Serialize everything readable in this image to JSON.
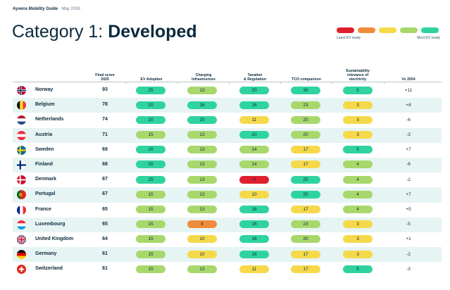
{
  "header": {
    "brand": "Ayvens Mobility Guide",
    "separator": "·",
    "date": "May 2026"
  },
  "title": {
    "prefix": "Category 1: ",
    "name": "Developed"
  },
  "legend": {
    "colors": [
      "#e01f2e",
      "#ef8c3a",
      "#f5d94a",
      "#a8d86b",
      "#2fd3a0"
    ],
    "least_label": "Least EV ready",
    "most_label": "Most EV ready"
  },
  "columns": {
    "final_score": [
      "Final score",
      "2025"
    ],
    "ev_adoption": [
      "EV Adoption"
    ],
    "charging": [
      "Charging",
      "Infrastructure"
    ],
    "taxation": [
      "Taxation",
      "& Regulation"
    ],
    "tco": [
      "TCO comparison"
    ],
    "sustainability": [
      "Sustainability",
      "relevance of",
      "electricity"
    ],
    "vs2024": [
      "Vs 2024"
    ]
  },
  "palette": {
    "teal": "#2fd3a0",
    "green": "#a8d86b",
    "yellow": "#f5d94a",
    "orange": "#ef8c3a",
    "red": "#e01f2e"
  },
  "rows": [
    {
      "country": "Norway",
      "flag": "norway-flag-icon",
      "score": "93",
      "ev": {
        "v": "25",
        "c": "teal"
      },
      "charging": {
        "v": "13",
        "c": "green"
      },
      "tax": {
        "v": "20",
        "c": "teal"
      },
      "tco": {
        "v": "30",
        "c": "teal"
      },
      "sus": {
        "v": "5",
        "c": "teal"
      },
      "vs": "+11"
    },
    {
      "country": "Belgium",
      "flag": "belgium-flag-icon",
      "score": "78",
      "ev": {
        "v": "20",
        "c": "teal"
      },
      "charging": {
        "v": "16",
        "c": "teal"
      },
      "tax": {
        "v": "16",
        "c": "teal"
      },
      "tco": {
        "v": "23",
        "c": "green"
      },
      "sus": {
        "v": "3",
        "c": "yellow"
      },
      "vs": "+8"
    },
    {
      "country": "Netherlands",
      "flag": "netherlands-flag-icon",
      "score": "74",
      "ev": {
        "v": "20",
        "c": "teal"
      },
      "charging": {
        "v": "20",
        "c": "teal"
      },
      "tax": {
        "v": "11",
        "c": "yellow"
      },
      "tco": {
        "v": "20",
        "c": "green"
      },
      "sus": {
        "v": "3",
        "c": "yellow"
      },
      "vs": "-6"
    },
    {
      "country": "Austria",
      "flag": "austria-flag-icon",
      "score": "71",
      "ev": {
        "v": "15",
        "c": "green"
      },
      "charging": {
        "v": "13",
        "c": "green"
      },
      "tax": {
        "v": "20",
        "c": "teal"
      },
      "tco": {
        "v": "20",
        "c": "green"
      },
      "sus": {
        "v": "3",
        "c": "yellow"
      },
      "vs": "-3"
    },
    {
      "country": "Sweden",
      "flag": "sweden-flag-icon",
      "score": "69",
      "ev": {
        "v": "20",
        "c": "teal"
      },
      "charging": {
        "v": "13",
        "c": "green"
      },
      "tax": {
        "v": "14",
        "c": "green"
      },
      "tco": {
        "v": "17",
        "c": "yellow"
      },
      "sus": {
        "v": "5",
        "c": "teal"
      },
      "vs": "+7"
    },
    {
      "country": "Finland",
      "flag": "finland-flag-icon",
      "score": "68",
      "ev": {
        "v": "20",
        "c": "teal"
      },
      "charging": {
        "v": "13",
        "c": "green"
      },
      "tax": {
        "v": "14",
        "c": "green"
      },
      "tco": {
        "v": "17",
        "c": "yellow"
      },
      "sus": {
        "v": "4",
        "c": "green"
      },
      "vs": "-6"
    },
    {
      "country": "Denmark",
      "flag": "denmark-flag-icon",
      "score": "67",
      "ev": {
        "v": "25",
        "c": "teal"
      },
      "charging": {
        "v": "13",
        "c": "green"
      },
      "tax": {
        "v": "0",
        "c": "red"
      },
      "tco": {
        "v": "25",
        "c": "teal"
      },
      "sus": {
        "v": "4",
        "c": "green"
      },
      "vs": "-2"
    },
    {
      "country": "Portugal",
      "flag": "portugal-flag-icon",
      "score": "67",
      "ev": {
        "v": "15",
        "c": "green"
      },
      "charging": {
        "v": "13",
        "c": "green"
      },
      "tax": {
        "v": "10",
        "c": "yellow"
      },
      "tco": {
        "v": "25",
        "c": "teal"
      },
      "sus": {
        "v": "4",
        "c": "green"
      },
      "vs": "+7"
    },
    {
      "country": "France",
      "flag": "france-flag-icon",
      "score": "65",
      "ev": {
        "v": "15",
        "c": "green"
      },
      "charging": {
        "v": "13",
        "c": "green"
      },
      "tax": {
        "v": "16",
        "c": "teal"
      },
      "tco": {
        "v": "17",
        "c": "yellow"
      },
      "sus": {
        "v": "4",
        "c": "green"
      },
      "vs": "+5"
    },
    {
      "country": "Luxembourg",
      "flag": "luxembourg-flag-icon",
      "score": "65",
      "ev": {
        "v": "15",
        "c": "green"
      },
      "charging": {
        "v": "8",
        "c": "orange"
      },
      "tax": {
        "v": "16",
        "c": "teal"
      },
      "tco": {
        "v": "23",
        "c": "green"
      },
      "sus": {
        "v": "3",
        "c": "yellow"
      },
      "vs": "-5"
    },
    {
      "country": "United Kingdom",
      "flag": "uk-flag-icon",
      "score": "64",
      "ev": {
        "v": "15",
        "c": "green"
      },
      "charging": {
        "v": "10",
        "c": "yellow"
      },
      "tax": {
        "v": "16",
        "c": "teal"
      },
      "tco": {
        "v": "20",
        "c": "green"
      },
      "sus": {
        "v": "3",
        "c": "yellow"
      },
      "vs": "+1"
    },
    {
      "country": "Germany",
      "flag": "germany-flag-icon",
      "score": "61",
      "ev": {
        "v": "15",
        "c": "green"
      },
      "charging": {
        "v": "10",
        "c": "yellow"
      },
      "tax": {
        "v": "16",
        "c": "teal"
      },
      "tco": {
        "v": "17",
        "c": "yellow"
      },
      "sus": {
        "v": "3",
        "c": "yellow"
      },
      "vs": "-2"
    },
    {
      "country": "Switzerland",
      "flag": "switzerland-flag-icon",
      "score": "61",
      "ev": {
        "v": "15",
        "c": "green"
      },
      "charging": {
        "v": "13",
        "c": "green"
      },
      "tax": {
        "v": "11",
        "c": "yellow"
      },
      "tco": {
        "v": "17",
        "c": "yellow"
      },
      "sus": {
        "v": "5",
        "c": "teal"
      },
      "vs": "-3"
    }
  ]
}
